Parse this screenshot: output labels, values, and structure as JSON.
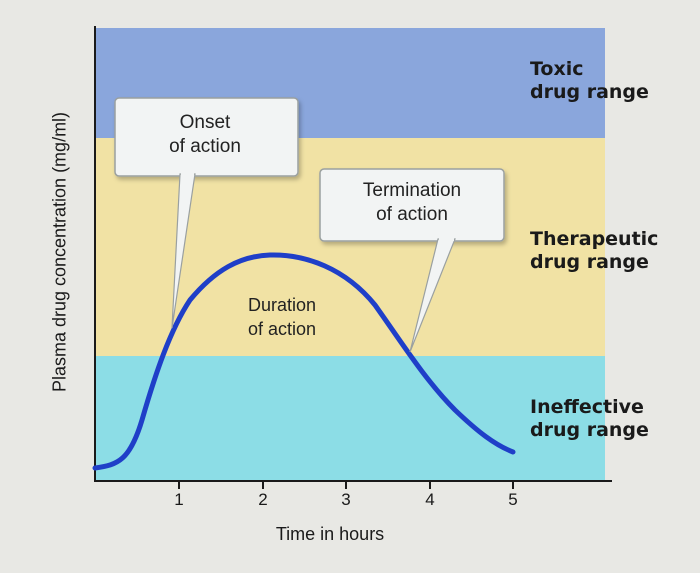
{
  "diagram": {
    "y_axis_label": "Plasma drug concentration (mg/ml)",
    "x_axis_label": "Time in hours",
    "x_ticks": [
      "1",
      "2",
      "3",
      "4",
      "5"
    ],
    "zones": [
      {
        "id": "toxic",
        "line1": "Toxic",
        "line2": "drug range",
        "color": "#8aa6dc"
      },
      {
        "id": "therapeutic",
        "line1": "Therapeutic",
        "line2": "drug range",
        "color": "#f1e2a4"
      },
      {
        "id": "ineffective",
        "line1": "Ineffective",
        "line2": "drug range",
        "color": "#8cdde6"
      }
    ],
    "callouts": {
      "onset": {
        "line1": "Onset",
        "line2": "of action"
      },
      "termination": {
        "line1": "Termination",
        "line2": "of action"
      },
      "duration": {
        "line1": "Duration",
        "line2": "of action"
      }
    },
    "curve_color": "#1f3fc8"
  }
}
